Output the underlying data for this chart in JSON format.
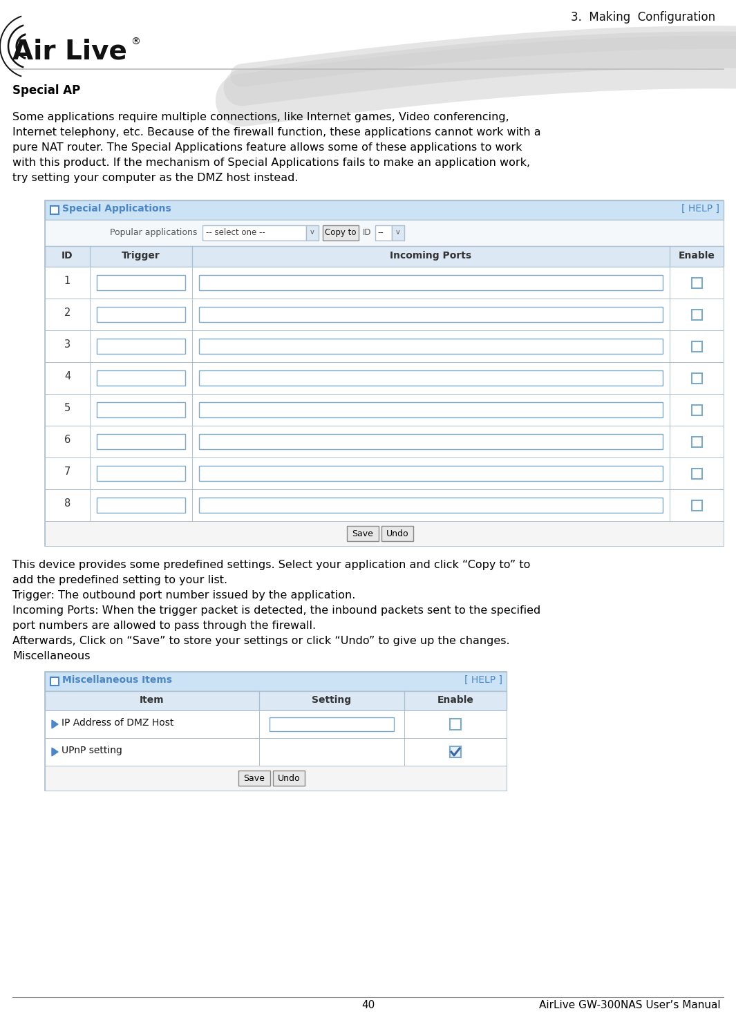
{
  "page_title": "3.  Making  Configuration",
  "section_title": "Special AP",
  "body_text_1_lines": [
    "Some applications require multiple connections, like Internet games, Video conferencing,",
    "Internet telephony, etc. Because of the firewall function, these applications cannot work with a",
    "pure NAT router. The Special Applications feature allows some of these applications to work",
    "with this product. If the mechanism of Special Applications fails to make an application work,",
    "try setting your computer as the DMZ host instead."
  ],
  "table1_title": "Special Applications",
  "table1_help": "[ HELP ]",
  "table1_header": [
    "ID",
    "Trigger",
    "Incoming Ports",
    "Enable"
  ],
  "table1_rows": 8,
  "body_text_2_lines": [
    "This device provides some predefined settings. Select your application and click “Copy to” to",
    "add the predefined setting to your list.",
    "Trigger: The outbound port number issued by the application.",
    "Incoming Ports: When the trigger packet is detected, the inbound packets sent to the specified",
    "port numbers are allowed to pass through the firewall.",
    "Afterwards, Click on “Save” to store your settings or click “Undo” to give up the changes.",
    "Miscellaneous"
  ],
  "table2_title": "Miscellaneous Items",
  "table2_help": "[ HELP ]",
  "table2_header": [
    "Item",
    "Setting",
    "Enable"
  ],
  "table2_rows": [
    {
      "item": "IP Address of DMZ Host",
      "has_input": true,
      "checked": false
    },
    {
      "item": "UPnP setting",
      "has_input": false,
      "checked": true
    }
  ],
  "footer_page": "40",
  "footer_text": "AirLive GW-300NAS User’s Manual",
  "bg_color": "#ffffff",
  "table_header_bg": "#dce9f5",
  "table_title_bg": "#cce3f5",
  "table_row_bg_light": "#f0f6fc",
  "table_border_color": "#aabfd0",
  "input_border": "#7aaac8",
  "checkbox_border": "#7aaac8",
  "button_bg": "#e8e8e8",
  "button_border": "#888888",
  "title_color": "#4a86c8",
  "swoosh_color": "#d0d0d0",
  "footer_line_color": "#888888",
  "logo_color": "#111111"
}
